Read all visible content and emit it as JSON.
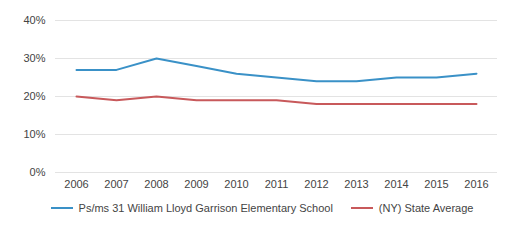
{
  "chart_data": {
    "type": "line",
    "categories": [
      "2006",
      "2007",
      "2008",
      "2009",
      "2010",
      "2011",
      "2012",
      "2013",
      "2014",
      "2015",
      "2016"
    ],
    "series": [
      {
        "name": "Ps/ms 31 William Lloyd Garrison Elementary School",
        "color": "#3a91c7",
        "values": [
          27,
          27,
          30,
          28,
          26,
          25,
          24,
          24,
          25,
          25,
          26
        ]
      },
      {
        "name": "(NY) State Average",
        "color": "#c8595b",
        "values": [
          20,
          19,
          20,
          19,
          19,
          19,
          18,
          18,
          18,
          18,
          18
        ]
      }
    ],
    "ylim": [
      0,
      40
    ],
    "yticks": [
      {
        "value": 0,
        "label": "0%"
      },
      {
        "value": 10,
        "label": "10%"
      },
      {
        "value": 20,
        "label": "20%"
      },
      {
        "value": 30,
        "label": "30%"
      },
      {
        "value": 40,
        "label": "40%"
      }
    ],
    "grid": true,
    "legend": "bottom"
  }
}
